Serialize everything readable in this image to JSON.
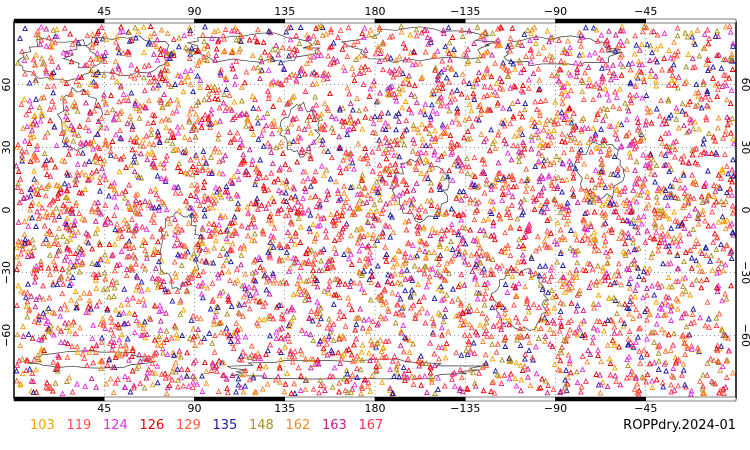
{
  "caption": "ROPPdry.2024-01",
  "axes": {
    "top_ticks": [
      {
        "label": "45",
        "lon": 45
      },
      {
        "label": "90",
        "lon": 90
      },
      {
        "label": "135",
        "lon": 135
      },
      {
        "label": "180",
        "lon": 180
      },
      {
        "label": "−135",
        "lon": -135
      },
      {
        "label": "−90",
        "lon": -90
      },
      {
        "label": "−45",
        "lon": -45
      }
    ],
    "bottom_ticks": [
      {
        "label": "45",
        "lon": 45
      },
      {
        "label": "90",
        "lon": 90
      },
      {
        "label": "135",
        "lon": 135
      },
      {
        "label": "180",
        "lon": 180
      },
      {
        "label": "−135",
        "lon": -135
      },
      {
        "label": "−90",
        "lon": -90
      },
      {
        "label": "−45",
        "lon": -45
      }
    ],
    "lat_ticks": [
      {
        "label": "60",
        "lat": 60
      },
      {
        "label": "30",
        "lat": 30
      },
      {
        "label": "0",
        "lat": 0
      },
      {
        "label": "−30",
        "lat": -30
      },
      {
        "label": "−60",
        "lat": -60
      }
    ],
    "lon_range": [
      0,
      360
    ],
    "lat_range": [
      -90,
      90
    ],
    "grid": "dotted"
  },
  "legend": [
    {
      "label": "103",
      "color": "#f5a300"
    },
    {
      "label": "119",
      "color": "#ff4d4d"
    },
    {
      "label": "124",
      "color": "#e030e0"
    },
    {
      "label": "126",
      "color": "#e00000"
    },
    {
      "label": "129",
      "color": "#ff5a3c"
    },
    {
      "label": "135",
      "color": "#1a1aa0"
    },
    {
      "label": "148",
      "color": "#a89020"
    },
    {
      "label": "162",
      "color": "#f08a30"
    },
    {
      "label": "163",
      "color": "#c0208f"
    },
    {
      "label": "167",
      "color": "#ff3050"
    }
  ],
  "marker": "triangle",
  "colors": {
    "frame": "#000000",
    "coastline": "#333333",
    "grid": "#555555"
  }
}
